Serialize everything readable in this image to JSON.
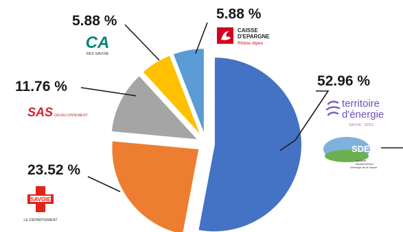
{
  "chart_data": {
    "type": "pie",
    "labels": [
      "Territoire d'énergie / SDES",
      "Savoie Le Département",
      "SAS Développement",
      "Crédit Agricole des Savoie",
      "Caisse d'Epargne Rhône Alpes"
    ],
    "values": [
      52.96,
      23.52,
      11.76,
      5.88,
      5.88
    ],
    "value_labels": [
      "52.96 %",
      "23.52 %",
      "11.76 %",
      "5.88 %",
      "5.88 %"
    ],
    "colors": [
      "#4472c4",
      "#ed7d31",
      "#a5a5a5",
      "#ffc000",
      "#5b9bd5"
    ],
    "exploded": true,
    "start_angle_deg": 0,
    "direction": "clockwise"
  },
  "logos": {
    "territoire": {
      "line1": "territoire",
      "line2": "d'énergie",
      "tag": "SAVOIE · SDES"
    },
    "sdes": {
      "name": "SDES",
      "sub1": "Syndicat",
      "sub2": "départemental",
      "sub3": "d'énergie de la Savoie"
    },
    "savoie": {
      "name": "SAVOIE",
      "sub": "LE DÉPARTEMENT"
    },
    "sas": {
      "name": "SAS",
      "sub": "DÉVELOPPEMENT"
    },
    "ca": {
      "name": "CA",
      "sub": "DES SAVOIE"
    },
    "ce": {
      "line1": "CAISSE",
      "line2": "D'EPARGNE",
      "line3": "Rhône Alpes"
    }
  }
}
